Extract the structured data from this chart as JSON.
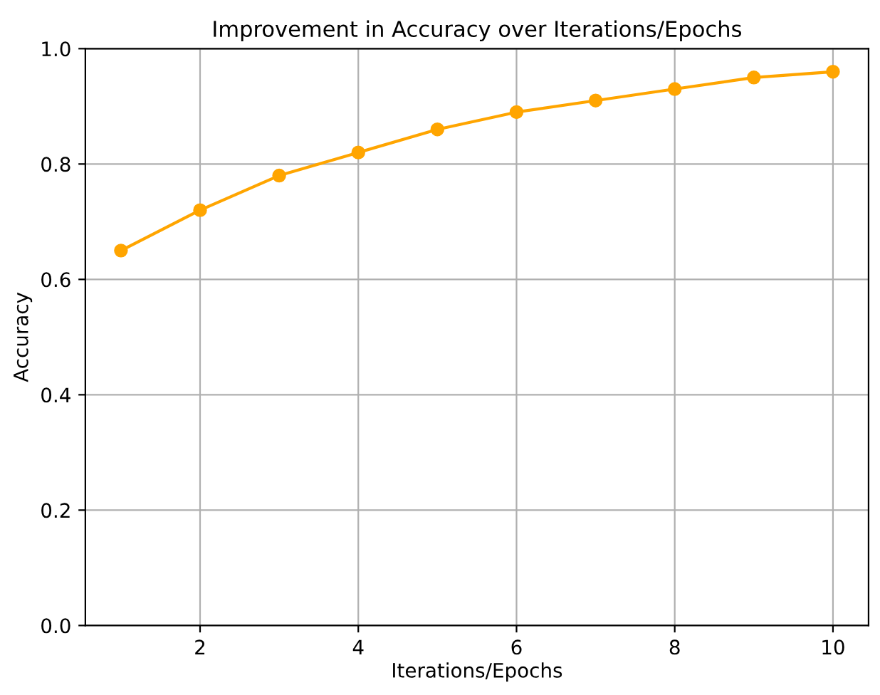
{
  "chart_data": {
    "type": "line",
    "title": "Improvement in Accuracy over Iterations/Epochs",
    "xlabel": "Iterations/Epochs",
    "ylabel": "Accuracy",
    "x": [
      1,
      2,
      3,
      4,
      5,
      6,
      7,
      8,
      9,
      10
    ],
    "series": [
      {
        "color": "#ffa500",
        "values": [
          0.65,
          0.72,
          0.78,
          0.82,
          0.86,
          0.89,
          0.91,
          0.93,
          0.95,
          0.96
        ]
      }
    ],
    "xlim": [
      0.55,
      10.45
    ],
    "xticks": [
      2,
      4,
      6,
      8,
      10
    ],
    "ylim": [
      0,
      1
    ],
    "yticks": [
      {
        "value": 0,
        "label": "0.0"
      },
      {
        "value": 0.2,
        "label": "0.2"
      },
      {
        "value": 0.4,
        "label": "0.4"
      },
      {
        "value": 0.6,
        "label": "0.6"
      },
      {
        "value": 0.8,
        "label": "0.8"
      },
      {
        "value": 1,
        "label": "1.0"
      }
    ],
    "grid": true,
    "marker": "circle",
    "line_style": "solid"
  }
}
